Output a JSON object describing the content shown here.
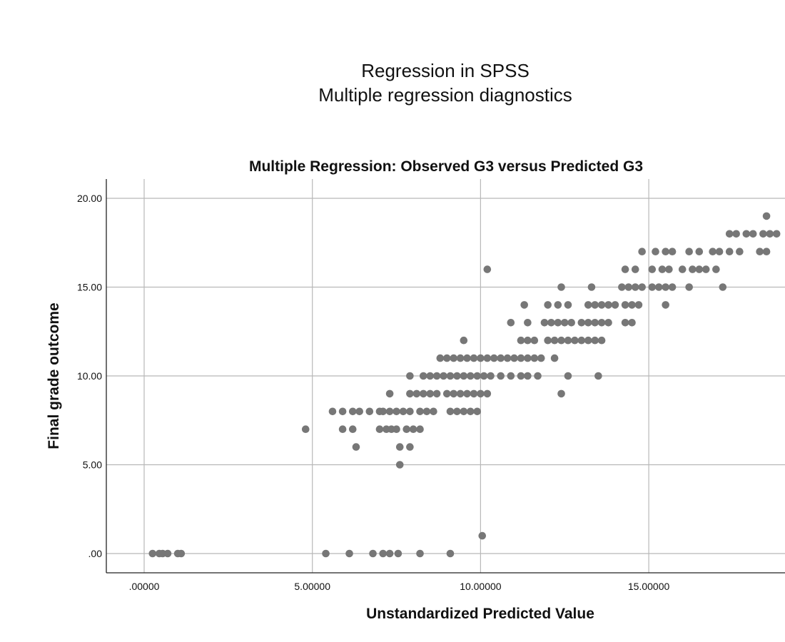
{
  "page": {
    "title_line1": "Regression in SPSS",
    "title_line2": "Multiple regression diagnostics"
  },
  "chart_data": {
    "type": "scatter",
    "title": "Multiple Regression: Observed G3 versus Predicted G3",
    "xlabel": "Unstandardized Predicted Value",
    "ylabel": "Final grade outcome",
    "xlim": [
      -1.1,
      19.0
    ],
    "ylim": [
      -1.05,
      21.1
    ],
    "xticks": [
      0,
      5,
      10,
      15
    ],
    "xtick_labels": [
      ".00000",
      "5.00000",
      "10.00000",
      "15.00000"
    ],
    "yticks": [
      0,
      5,
      10,
      15,
      20
    ],
    "ytick_labels": [
      ".00",
      "5.00",
      "10.00",
      "15.00",
      "20.00"
    ],
    "grid": true,
    "marker_color": "#777777",
    "gridline_color": "#b8b8b8",
    "series": [
      {
        "points": [
          [
            0.25,
            0
          ],
          [
            0.45,
            0
          ],
          [
            0.55,
            0
          ],
          [
            0.7,
            0
          ],
          [
            1.0,
            0
          ],
          [
            1.1,
            0
          ],
          [
            5.4,
            0
          ],
          [
            6.1,
            0
          ],
          [
            6.8,
            0
          ],
          [
            7.1,
            0
          ],
          [
            7.3,
            0
          ],
          [
            7.55,
            0
          ],
          [
            8.2,
            0
          ],
          [
            9.1,
            0
          ],
          [
            10.05,
            1
          ],
          [
            7.6,
            5
          ],
          [
            6.3,
            6
          ],
          [
            7.6,
            6
          ],
          [
            7.9,
            6
          ],
          [
            4.8,
            7
          ],
          [
            5.9,
            7
          ],
          [
            6.2,
            7
          ],
          [
            7.0,
            7
          ],
          [
            7.2,
            7
          ],
          [
            7.35,
            7
          ],
          [
            7.5,
            7
          ],
          [
            7.8,
            7
          ],
          [
            8.0,
            7
          ],
          [
            8.2,
            7
          ],
          [
            5.6,
            8
          ],
          [
            5.9,
            8
          ],
          [
            6.2,
            8
          ],
          [
            6.4,
            8
          ],
          [
            6.7,
            8
          ],
          [
            7.0,
            8
          ],
          [
            7.1,
            8
          ],
          [
            7.3,
            8
          ],
          [
            7.5,
            8
          ],
          [
            7.7,
            8
          ],
          [
            7.9,
            8
          ],
          [
            8.2,
            8
          ],
          [
            8.4,
            8
          ],
          [
            8.6,
            8
          ],
          [
            9.1,
            8
          ],
          [
            9.3,
            8
          ],
          [
            9.5,
            8
          ],
          [
            9.7,
            8
          ],
          [
            9.9,
            8
          ],
          [
            7.3,
            9
          ],
          [
            7.9,
            9
          ],
          [
            8.1,
            9
          ],
          [
            8.3,
            9
          ],
          [
            8.5,
            9
          ],
          [
            8.7,
            9
          ],
          [
            9.0,
            9
          ],
          [
            9.2,
            9
          ],
          [
            9.4,
            9
          ],
          [
            9.6,
            9
          ],
          [
            9.8,
            9
          ],
          [
            10.0,
            9
          ],
          [
            10.2,
            9
          ],
          [
            12.4,
            9
          ],
          [
            7.9,
            10
          ],
          [
            8.3,
            10
          ],
          [
            8.5,
            10
          ],
          [
            8.7,
            10
          ],
          [
            8.9,
            10
          ],
          [
            9.1,
            10
          ],
          [
            9.3,
            10
          ],
          [
            9.5,
            10
          ],
          [
            9.7,
            10
          ],
          [
            9.9,
            10
          ],
          [
            10.1,
            10
          ],
          [
            10.3,
            10
          ],
          [
            10.6,
            10
          ],
          [
            10.9,
            10
          ],
          [
            11.2,
            10
          ],
          [
            11.4,
            10
          ],
          [
            11.7,
            10
          ],
          [
            12.6,
            10
          ],
          [
            13.5,
            10
          ],
          [
            8.8,
            11
          ],
          [
            9.0,
            11
          ],
          [
            9.2,
            11
          ],
          [
            9.4,
            11
          ],
          [
            9.6,
            11
          ],
          [
            9.8,
            11
          ],
          [
            10.0,
            11
          ],
          [
            10.2,
            11
          ],
          [
            10.4,
            11
          ],
          [
            10.6,
            11
          ],
          [
            10.8,
            11
          ],
          [
            11.0,
            11
          ],
          [
            11.2,
            11
          ],
          [
            11.4,
            11
          ],
          [
            11.6,
            11
          ],
          [
            11.8,
            11
          ],
          [
            12.2,
            11
          ],
          [
            9.5,
            12
          ],
          [
            11.2,
            12
          ],
          [
            11.4,
            12
          ],
          [
            11.6,
            12
          ],
          [
            12.0,
            12
          ],
          [
            12.2,
            12
          ],
          [
            12.4,
            12
          ],
          [
            12.6,
            12
          ],
          [
            12.8,
            12
          ],
          [
            13.0,
            12
          ],
          [
            13.2,
            12
          ],
          [
            13.4,
            12
          ],
          [
            13.6,
            12
          ],
          [
            10.9,
            13
          ],
          [
            11.4,
            13
          ],
          [
            11.9,
            13
          ],
          [
            12.1,
            13
          ],
          [
            12.3,
            13
          ],
          [
            12.5,
            13
          ],
          [
            12.7,
            13
          ],
          [
            13.0,
            13
          ],
          [
            13.2,
            13
          ],
          [
            13.4,
            13
          ],
          [
            13.6,
            13
          ],
          [
            13.8,
            13
          ],
          [
            14.3,
            13
          ],
          [
            14.5,
            13
          ],
          [
            11.3,
            14
          ],
          [
            12.0,
            14
          ],
          [
            12.3,
            14
          ],
          [
            12.6,
            14
          ],
          [
            13.2,
            14
          ],
          [
            13.4,
            14
          ],
          [
            13.6,
            14
          ],
          [
            13.8,
            14
          ],
          [
            14.0,
            14
          ],
          [
            14.3,
            14
          ],
          [
            14.5,
            14
          ],
          [
            14.7,
            14
          ],
          [
            15.5,
            14
          ],
          [
            10.2,
            16
          ],
          [
            12.4,
            15
          ],
          [
            13.3,
            15
          ],
          [
            14.2,
            15
          ],
          [
            14.4,
            15
          ],
          [
            14.6,
            15
          ],
          [
            14.8,
            15
          ],
          [
            15.1,
            15
          ],
          [
            15.3,
            15
          ],
          [
            15.5,
            15
          ],
          [
            15.7,
            15
          ],
          [
            16.2,
            15
          ],
          [
            17.2,
            15
          ],
          [
            14.3,
            16
          ],
          [
            14.6,
            16
          ],
          [
            15.1,
            16
          ],
          [
            15.4,
            16
          ],
          [
            15.6,
            16
          ],
          [
            16.0,
            16
          ],
          [
            16.3,
            16
          ],
          [
            16.5,
            16
          ],
          [
            16.7,
            16
          ],
          [
            17.0,
            16
          ],
          [
            14.8,
            17
          ],
          [
            15.2,
            17
          ],
          [
            15.5,
            17
          ],
          [
            15.7,
            17
          ],
          [
            16.2,
            17
          ],
          [
            16.5,
            17
          ],
          [
            16.9,
            17
          ],
          [
            17.1,
            17
          ],
          [
            17.4,
            17
          ],
          [
            17.7,
            17
          ],
          [
            18.3,
            17
          ],
          [
            18.5,
            17
          ],
          [
            17.4,
            18
          ],
          [
            17.6,
            18
          ],
          [
            17.9,
            18
          ],
          [
            18.1,
            18
          ],
          [
            18.4,
            18
          ],
          [
            18.6,
            18
          ],
          [
            18.8,
            18
          ],
          [
            18.5,
            19
          ]
        ]
      }
    ]
  }
}
